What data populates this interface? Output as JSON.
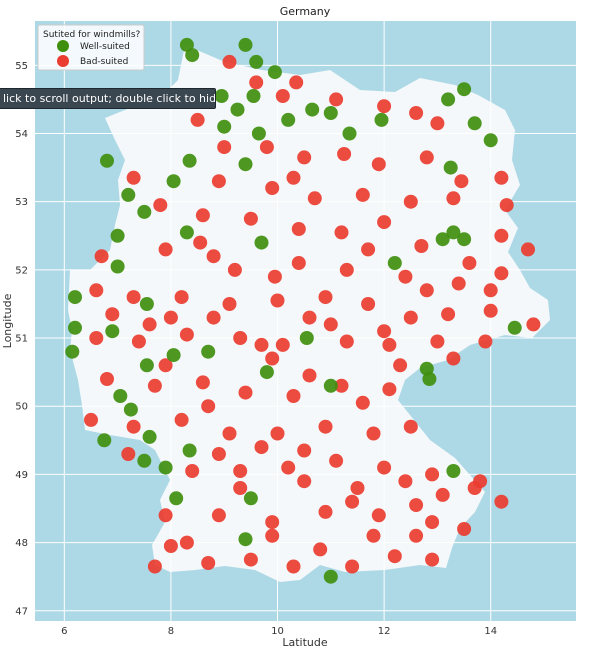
{
  "tooltip": {
    "text": "lick to scroll output; double click to hide"
  },
  "chart_data": {
    "type": "scatter",
    "title": "Germany",
    "xlabel": "Latitude",
    "ylabel": "Longitude",
    "xlim": [
      5.45,
      15.6
    ],
    "ylim": [
      46.85,
      55.65
    ],
    "xticks": [
      6,
      8,
      10,
      12,
      14
    ],
    "yticks": [
      47,
      48,
      49,
      50,
      51,
      52,
      53,
      54,
      55
    ],
    "grid": true,
    "legend": {
      "title": "Sutited for windmills?",
      "placement": "top-left",
      "entries": [
        "Well-suited",
        "Bad-suited"
      ]
    },
    "colors": {
      "well_suited": "#3f8f0f",
      "bad_suited": "#ea3c30",
      "background": "#add8e6",
      "land": "#f4f8fa"
    },
    "series": [
      {
        "name": "Well-suited",
        "points": [
          [
            8.3,
            55.3
          ],
          [
            8.4,
            55.15
          ],
          [
            9.4,
            55.3
          ],
          [
            9.6,
            55.05
          ],
          [
            9.95,
            54.9
          ],
          [
            8.95,
            54.55
          ],
          [
            9.25,
            54.35
          ],
          [
            9.55,
            54.55
          ],
          [
            9.0,
            54.1
          ],
          [
            9.65,
            54.0
          ],
          [
            10.2,
            54.2
          ],
          [
            10.65,
            54.35
          ],
          [
            11.0,
            54.3
          ],
          [
            11.35,
            54.0
          ],
          [
            11.95,
            54.2
          ],
          [
            13.2,
            54.5
          ],
          [
            13.5,
            54.65
          ],
          [
            13.7,
            54.15
          ],
          [
            14.0,
            53.9
          ],
          [
            13.25,
            53.5
          ],
          [
            8.35,
            53.6
          ],
          [
            8.05,
            53.3
          ],
          [
            9.4,
            53.55
          ],
          [
            6.8,
            53.6
          ],
          [
            7.2,
            53.1
          ],
          [
            7.5,
            52.85
          ],
          [
            7.0,
            52.5
          ],
          [
            8.3,
            52.55
          ],
          [
            9.7,
            52.4
          ],
          [
            12.2,
            52.1
          ],
          [
            13.1,
            52.45
          ],
          [
            13.3,
            52.55
          ],
          [
            13.5,
            52.45
          ],
          [
            7.0,
            52.05
          ],
          [
            6.2,
            51.6
          ],
          [
            7.55,
            51.5
          ],
          [
            6.2,
            51.15
          ],
          [
            6.9,
            51.1
          ],
          [
            8.7,
            50.8
          ],
          [
            8.05,
            50.75
          ],
          [
            6.15,
            50.8
          ],
          [
            7.55,
            50.6
          ],
          [
            9.8,
            50.5
          ],
          [
            11.0,
            50.3
          ],
          [
            12.8,
            50.55
          ],
          [
            7.05,
            50.15
          ],
          [
            7.25,
            49.95
          ],
          [
            6.75,
            49.5
          ],
          [
            7.9,
            49.1
          ],
          [
            8.1,
            48.65
          ],
          [
            9.5,
            48.65
          ],
          [
            9.4,
            48.05
          ],
          [
            11.0,
            47.5
          ],
          [
            13.3,
            49.05
          ],
          [
            12.85,
            50.4
          ],
          [
            7.5,
            49.2
          ],
          [
            7.6,
            49.55
          ],
          [
            8.35,
            49.35
          ],
          [
            14.45,
            51.15
          ],
          [
            10.55,
            51.0
          ]
        ]
      },
      {
        "name": "Bad-suited",
        "points": [
          [
            9.1,
            55.05
          ],
          [
            9.6,
            54.75
          ],
          [
            10.1,
            54.55
          ],
          [
            10.35,
            54.75
          ],
          [
            11.1,
            54.5
          ],
          [
            12.0,
            54.4
          ],
          [
            12.6,
            54.3
          ],
          [
            13.0,
            54.15
          ],
          [
            9.0,
            53.8
          ],
          [
            9.8,
            53.8
          ],
          [
            10.5,
            53.65
          ],
          [
            11.25,
            53.7
          ],
          [
            11.9,
            53.55
          ],
          [
            12.8,
            53.65
          ],
          [
            13.45,
            53.3
          ],
          [
            14.2,
            53.35
          ],
          [
            8.9,
            53.3
          ],
          [
            9.9,
            53.2
          ],
          [
            10.7,
            53.05
          ],
          [
            11.6,
            53.1
          ],
          [
            12.5,
            53.0
          ],
          [
            13.3,
            53.05
          ],
          [
            14.3,
            52.95
          ],
          [
            7.8,
            52.95
          ],
          [
            8.6,
            52.8
          ],
          [
            9.5,
            52.75
          ],
          [
            10.4,
            52.6
          ],
          [
            11.2,
            52.55
          ],
          [
            12.0,
            52.7
          ],
          [
            12.7,
            52.35
          ],
          [
            14.2,
            52.5
          ],
          [
            14.7,
            52.3
          ],
          [
            7.9,
            52.3
          ],
          [
            8.8,
            52.2
          ],
          [
            10.4,
            52.1
          ],
          [
            11.3,
            52.0
          ],
          [
            12.4,
            51.9
          ],
          [
            13.4,
            51.8
          ],
          [
            14.2,
            51.95
          ],
          [
            6.6,
            51.7
          ],
          [
            7.3,
            51.6
          ],
          [
            8.2,
            51.6
          ],
          [
            9.1,
            51.5
          ],
          [
            10.0,
            51.55
          ],
          [
            10.9,
            51.6
          ],
          [
            11.7,
            51.5
          ],
          [
            12.5,
            51.3
          ],
          [
            13.2,
            51.35
          ],
          [
            14.0,
            51.4
          ],
          [
            14.8,
            51.2
          ],
          [
            6.6,
            51.0
          ],
          [
            7.4,
            50.95
          ],
          [
            8.3,
            51.05
          ],
          [
            9.3,
            51.0
          ],
          [
            10.1,
            50.9
          ],
          [
            11.3,
            50.95
          ],
          [
            12.1,
            50.9
          ],
          [
            13.0,
            50.95
          ],
          [
            13.9,
            50.95
          ],
          [
            6.8,
            50.4
          ],
          [
            7.7,
            50.3
          ],
          [
            8.6,
            50.35
          ],
          [
            9.4,
            50.2
          ],
          [
            10.3,
            50.15
          ],
          [
            11.2,
            50.3
          ],
          [
            12.1,
            50.25
          ],
          [
            6.5,
            49.8
          ],
          [
            7.3,
            49.7
          ],
          [
            8.2,
            49.8
          ],
          [
            9.1,
            49.6
          ],
          [
            10.0,
            49.6
          ],
          [
            10.9,
            49.7
          ],
          [
            11.8,
            49.6
          ],
          [
            12.5,
            49.7
          ],
          [
            7.2,
            49.3
          ],
          [
            8.4,
            49.05
          ],
          [
            9.3,
            49.05
          ],
          [
            10.2,
            49.1
          ],
          [
            11.1,
            49.2
          ],
          [
            12.0,
            49.1
          ],
          [
            12.9,
            49.0
          ],
          [
            13.7,
            48.8
          ],
          [
            14.2,
            48.6
          ],
          [
            7.9,
            48.4
          ],
          [
            8.9,
            48.4
          ],
          [
            9.9,
            48.3
          ],
          [
            10.9,
            48.45
          ],
          [
            11.9,
            48.4
          ],
          [
            12.9,
            48.3
          ],
          [
            13.5,
            48.2
          ],
          [
            8.0,
            47.95
          ],
          [
            8.7,
            47.7
          ],
          [
            9.5,
            47.75
          ],
          [
            10.3,
            47.65
          ],
          [
            11.4,
            47.65
          ],
          [
            12.2,
            47.8
          ],
          [
            12.9,
            47.75
          ],
          [
            7.7,
            47.65
          ],
          [
            13.1,
            48.7
          ],
          [
            12.4,
            48.9
          ],
          [
            11.5,
            48.8
          ],
          [
            10.5,
            48.9
          ],
          [
            9.7,
            49.4
          ],
          [
            8.7,
            50.0
          ],
          [
            9.9,
            50.7
          ],
          [
            10.6,
            51.3
          ],
          [
            11.7,
            52.3
          ],
          [
            9.2,
            52.0
          ],
          [
            8.0,
            51.3
          ],
          [
            12.8,
            51.7
          ],
          [
            13.6,
            52.1
          ],
          [
            10.3,
            53.35
          ],
          [
            8.5,
            54.2
          ],
          [
            7.3,
            53.35
          ],
          [
            6.7,
            52.2
          ],
          [
            8.55,
            52.4
          ],
          [
            9.95,
            51.9
          ],
          [
            11.0,
            51.2
          ],
          [
            12.3,
            50.6
          ],
          [
            13.3,
            50.7
          ],
          [
            14.0,
            51.7
          ],
          [
            12.0,
            51.1
          ],
          [
            11.6,
            50.05
          ],
          [
            10.6,
            50.45
          ],
          [
            9.7,
            50.9
          ],
          [
            8.8,
            51.3
          ],
          [
            7.6,
            51.2
          ],
          [
            6.9,
            51.35
          ],
          [
            7.9,
            50.6
          ],
          [
            8.9,
            49.3
          ],
          [
            10.5,
            49.35
          ],
          [
            11.4,
            48.6
          ],
          [
            12.6,
            48.55
          ],
          [
            13.8,
            48.9
          ],
          [
            9.3,
            48.8
          ],
          [
            8.3,
            48.0
          ],
          [
            10.8,
            47.9
          ],
          [
            11.8,
            48.1
          ],
          [
            12.6,
            48.1
          ],
          [
            9.9,
            48.1
          ]
        ]
      }
    ]
  }
}
